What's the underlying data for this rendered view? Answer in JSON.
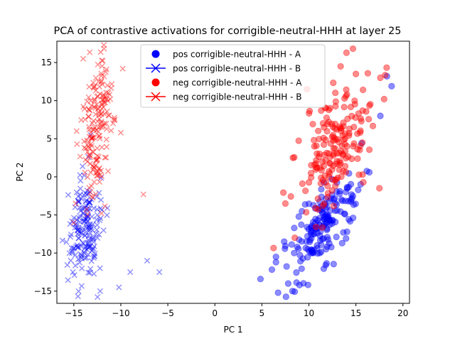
{
  "chart_data": {
    "type": "scatter",
    "title": "PCA of contrastive activations for corrigible-neutral-HHH at layer 25",
    "xlabel": "PC 1",
    "ylabel": "PC 2",
    "xlim": [
      -16.8,
      20.7
    ],
    "ylim": [
      -16.6,
      17.8
    ],
    "xticks": [
      -15,
      -10,
      -5,
      0,
      5,
      10,
      15,
      20
    ],
    "yticks": [
      -15,
      -10,
      -5,
      0,
      5,
      10,
      15
    ],
    "grid": false,
    "legend_position": "upper center",
    "series": [
      {
        "name": "pos corrigible-neutral-HHH - A",
        "color": "#0000ff",
        "marker": "circle",
        "cluster": {
          "cx": 11.5,
          "cy": -6.5,
          "sx": 1.9,
          "sy": 3.6,
          "rho": 0.72,
          "n": 180,
          "extremes": [
            [
              6.5,
              -10.5
            ],
            [
              6.5,
              -11.2
            ],
            [
              7.8,
              -14.0
            ],
            [
              9.0,
              -14.2
            ],
            [
              18.3,
              13.2
            ],
            [
              18.8,
              11.9
            ],
            [
              17.6,
              8.0
            ],
            [
              15.6,
              4.4
            ]
          ]
        }
      },
      {
        "name": "pos corrigible-neutral-HHH - B",
        "color": "#0000ff",
        "marker": "x",
        "cluster": {
          "cx": -13.8,
          "cy": -7.0,
          "sx": 0.9,
          "sy": 3.6,
          "rho": 0.15,
          "n": 180,
          "extremes": [
            [
              -15.2,
              -10.0
            ],
            [
              -15.1,
              -12.5
            ],
            [
              -12.2,
              -15.0
            ],
            [
              -10.2,
              -14.5
            ],
            [
              -9.0,
              -12.5
            ],
            [
              -7.2,
              -11.0
            ],
            [
              -5.9,
              -12.5
            ],
            [
              -13.2,
              5.5
            ]
          ]
        }
      },
      {
        "name": "neg corrigible-neutral-HHH - A",
        "color": "#ff0000",
        "marker": "circle",
        "cluster": {
          "cx": 12.8,
          "cy": 3.8,
          "sx": 2.1,
          "sy": 4.5,
          "rho": 0.62,
          "n": 180,
          "extremes": [
            [
              7.5,
              -3.5
            ],
            [
              8.5,
              -8.0
            ],
            [
              8.3,
              2.5
            ],
            [
              9.8,
              11.5
            ],
            [
              15.0,
              13.5
            ],
            [
              17.6,
              13.0
            ],
            [
              18.0,
              10.2
            ],
            [
              17.5,
              -1.5
            ]
          ]
        }
      },
      {
        "name": "neg corrigible-neutral-HHH - B",
        "color": "#ff0000",
        "marker": "x",
        "cluster": {
          "cx": -12.6,
          "cy": 6.5,
          "sx": 0.8,
          "sy": 4.4,
          "rho": 0.3,
          "n": 180,
          "extremes": [
            [
              -14.8,
              -3.5
            ],
            [
              -15.0,
              -6.0
            ],
            [
              -14.7,
              6.0
            ],
            [
              -14.0,
              15.5
            ],
            [
              -11.8,
              17.3
            ],
            [
              -9.8,
              14.2
            ],
            [
              -10.0,
              5.8
            ],
            [
              -7.6,
              -2.3
            ]
          ]
        }
      }
    ]
  }
}
